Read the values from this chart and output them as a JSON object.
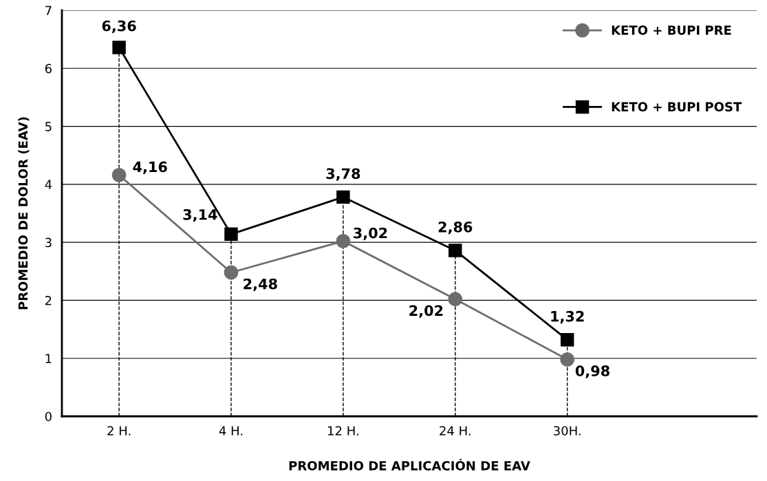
{
  "chart_data": {
    "type": "line",
    "xlabel": "PROMEDIO DE APLICACIÓN DE EAV",
    "ylabel": "PROMEDIO DE DOLOR (EAV)",
    "categories": [
      "2 H.",
      "4 H.",
      "12 H.",
      "24 H.",
      "30H."
    ],
    "series": [
      {
        "name": "KETO + BUPI PRE",
        "color": "#6d6d6d",
        "marker": "circle",
        "values": [
          4.16,
          2.48,
          3.02,
          2.02,
          0.98
        ],
        "value_labels": [
          "4,16",
          "2,48",
          "3,02",
          "2,02",
          "0,98"
        ]
      },
      {
        "name": "KETO + BUPI POST",
        "color": "#000000",
        "marker": "square",
        "values": [
          6.36,
          3.14,
          3.78,
          2.86,
          1.32
        ],
        "value_labels": [
          "6,36",
          "3,14",
          "3,78",
          "2,86",
          "1,32"
        ]
      }
    ],
    "ylim": [
      0,
      7
    ],
    "yticks": [
      0,
      1,
      2,
      3,
      4,
      5,
      6,
      7
    ],
    "grid": "y",
    "legend": "top right",
    "line_style": "solid",
    "ref_lines": [
      {
        "axis": "x",
        "value": "2 H.",
        "color": "#000000",
        "line_style": "dashed"
      },
      {
        "axis": "x",
        "value": "4 H.",
        "color": "#000000",
        "line_style": "dashed"
      },
      {
        "axis": "x",
        "value": "12 H.",
        "color": "#000000",
        "line_style": "dashed"
      },
      {
        "axis": "x",
        "value": "24 H.",
        "color": "#000000",
        "line_style": "dashed"
      },
      {
        "axis": "x",
        "value": "30H.",
        "color": "#000000",
        "line_style": "dashed"
      }
    ]
  }
}
